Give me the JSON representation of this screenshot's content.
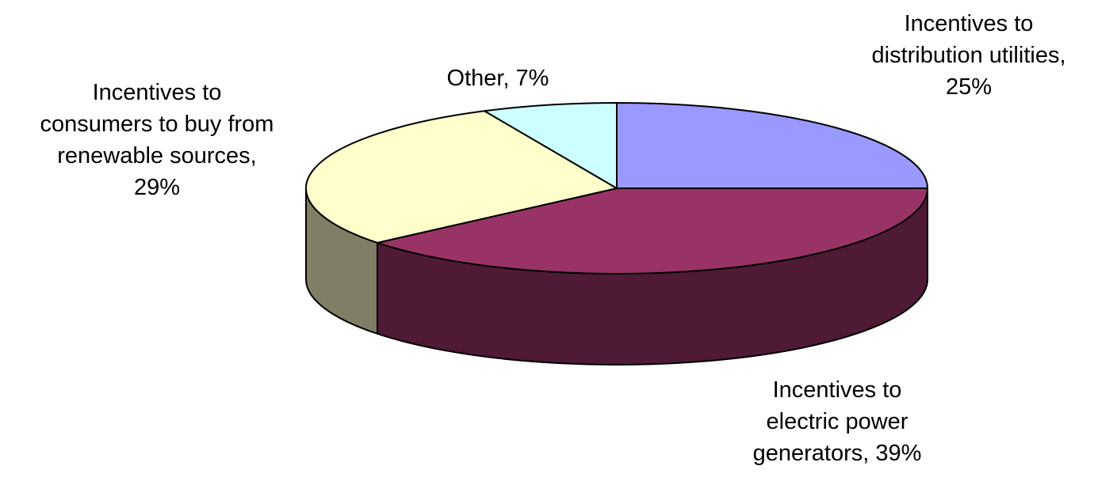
{
  "chart_data": {
    "type": "pie",
    "style": "3d",
    "title": "",
    "slices": [
      {
        "label_lines": [
          "Incentives to",
          "distribution utilities,",
          "25%"
        ],
        "value": 25,
        "color": "#9999FF",
        "side_color": "#5C5C99"
      },
      {
        "label_lines": [
          "Incentives to",
          "electric power",
          "generators, 39%"
        ],
        "value": 39,
        "color": "#993366",
        "side_color": "#4F1A35"
      },
      {
        "label_lines": [
          "Incentives to",
          "consumers to buy from",
          "renewable sources,",
          "29%"
        ],
        "value": 29,
        "color": "#FFFFCC",
        "side_color": "#7F7F66"
      },
      {
        "label_lines": [
          "Other, 7%"
        ],
        "value": 7,
        "color": "#CCFFFF",
        "side_color": "#668080"
      }
    ]
  }
}
